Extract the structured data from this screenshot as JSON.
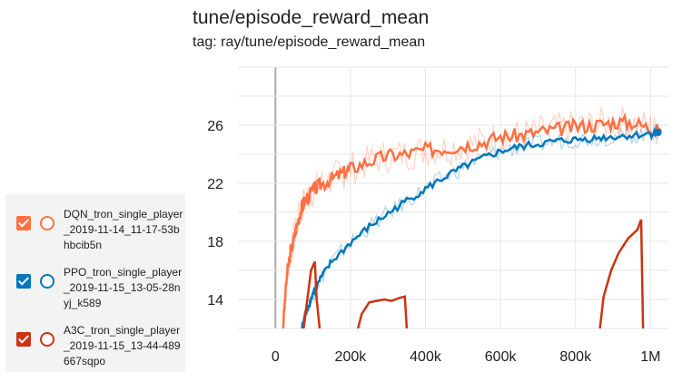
{
  "chart_data": {
    "type": "line",
    "title": "tune/episode_reward_mean",
    "subtitle": "tag: ray/tune/episode_reward_mean",
    "xlabel": "",
    "ylabel": "",
    "xlim": [
      -100000,
      1050000
    ],
    "ylim": [
      12,
      30
    ],
    "xticks": [
      0,
      200000,
      400000,
      600000,
      800000,
      1000000
    ],
    "xtick_labels": [
      "0",
      "200k",
      "400k",
      "600k",
      "800k",
      "1M"
    ],
    "yticks": [
      14,
      18,
      22,
      26
    ],
    "ytick_labels": [
      "14",
      "18",
      "22",
      "26"
    ],
    "grid": true,
    "legend_position": "left",
    "series": [
      {
        "name": "DQN_tron_single_player_2019-11-14_11-17-53bhbcib5n",
        "color": "#ff7043",
        "x": [
          20000,
          30000,
          40000,
          50000,
          60000,
          70000,
          80000,
          100000,
          120000,
          150000,
          180000,
          200000,
          250000,
          300000,
          350000,
          400000,
          450000,
          500000,
          550000,
          600000,
          650000,
          700000,
          750000,
          800000,
          850000,
          900000,
          950000,
          1000000,
          1020000
        ],
        "y": [
          12,
          15.5,
          17.2,
          18.3,
          19.4,
          20.3,
          20.9,
          21.5,
          21.9,
          22.3,
          22.7,
          23.0,
          23.5,
          23.9,
          24.0,
          24.3,
          24.4,
          24.6,
          24.8,
          25.2,
          25.3,
          25.5,
          25.7,
          25.9,
          26.0,
          26.2,
          26.2,
          25.8,
          25.6
        ]
      },
      {
        "name": "PPO_tron_single_player_2019-11-15_13-05-28nyj_k589",
        "color": "#0077bb",
        "x": [
          70000,
          80000,
          90000,
          100000,
          120000,
          150000,
          200000,
          250000,
          300000,
          350000,
          400000,
          450000,
          500000,
          550000,
          600000,
          650000,
          700000,
          750000,
          800000,
          850000,
          900000,
          950000,
          1000000,
          1020000
        ],
        "y": [
          12,
          13.0,
          13.7,
          14.4,
          15.4,
          16.6,
          17.9,
          19.0,
          19.9,
          20.8,
          21.6,
          22.4,
          23.1,
          23.7,
          24.2,
          24.5,
          24.7,
          24.9,
          25.0,
          25.1,
          25.2,
          25.3,
          25.4,
          25.5
        ]
      },
      {
        "name": "A3C_tron_single_player_2019-11-15_13-44-489667sqpo",
        "color": "#cc3311",
        "segments": [
          {
            "x": [
              75000,
              85000,
              95000,
              105000,
              110000,
              118000
            ],
            "y": [
              12,
              14.0,
              16.0,
              16.6,
              14.0,
              12
            ]
          },
          {
            "x": [
              220000,
              230000,
              250000,
              270000,
              290000,
              310000,
              330000,
              345000,
              350000
            ],
            "y": [
              12,
              13.0,
              13.8,
              13.9,
              14.0,
              13.9,
              14.1,
              14.2,
              12
            ]
          },
          {
            "x": [
              865000,
              875000,
              895000,
              915000,
              940000,
              965000,
              975000,
              980000
            ],
            "y": [
              12,
              14.2,
              16.0,
              17.2,
              18.2,
              18.8,
              19.5,
              12
            ]
          }
        ]
      }
    ]
  },
  "legend": {
    "items": [
      {
        "label": "DQN_tron_single_player_2019-11-14_11-17-53bhbcib5n",
        "color": "#ff7043",
        "checked": true
      },
      {
        "label": "PPO_tron_single_player_2019-11-15_13-05-28nyj_k589",
        "color": "#0077bb",
        "checked": true
      },
      {
        "label": "A3C_tron_single_player_2019-11-15_13-44-489667sqpo",
        "color": "#cc3311",
        "checked": true
      }
    ]
  }
}
